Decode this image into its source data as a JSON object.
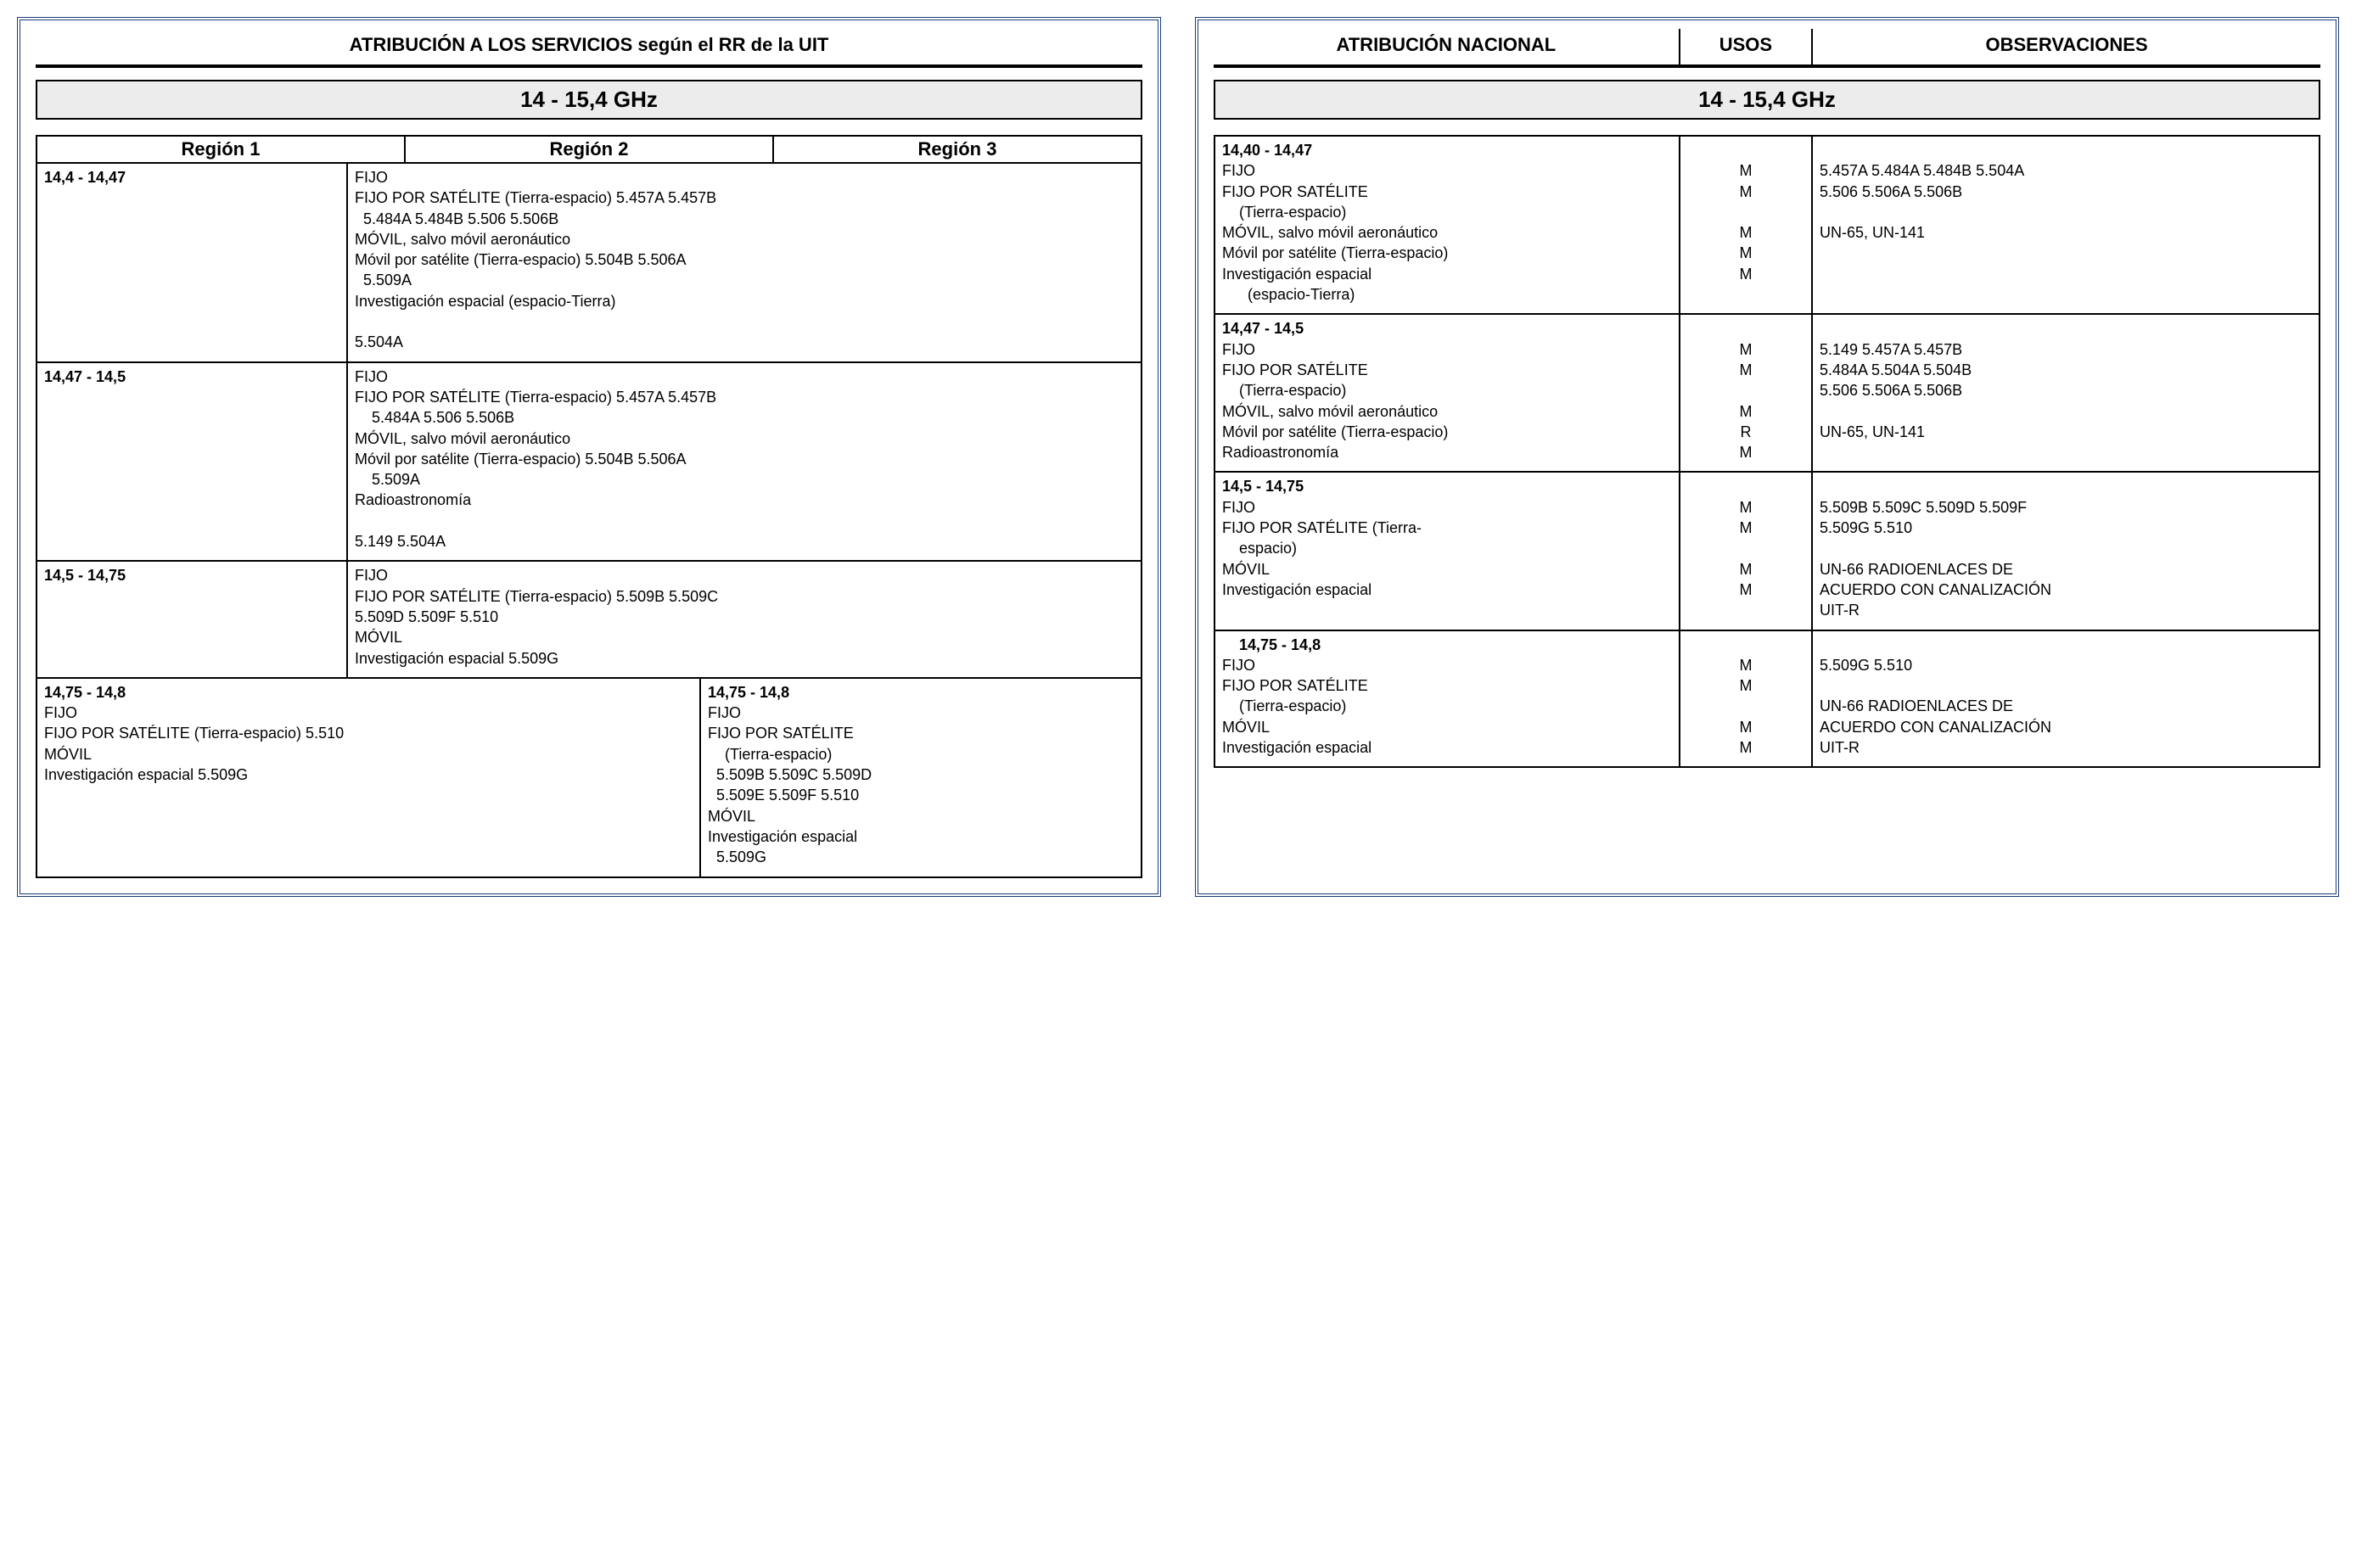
{
  "left": {
    "title": "ATRIBUCIÓN A LOS SERVICIOS según el RR de la UIT",
    "band": "14  - 15,4 GHz",
    "regions": [
      "Región 1",
      "Región 2",
      "Región 3"
    ],
    "rows": [
      {
        "range": "14,4 - 14,47",
        "lines": [
          "FIJO",
          "FIJO POR SATÉLITE (Tierra-espacio) 5.457A  5.457B",
          " 5.484A 5.484B 5.506 5.506B",
          "MÓVIL, salvo móvil aeronáutico",
          "Móvil por satélite (Tierra-espacio) 5.504B 5.506A",
          " 5.509A",
          "Investigación espacial (espacio-Tierra)",
          "",
          "5.504A"
        ]
      },
      {
        "range": "14,47 - 14,5",
        "lines": [
          "FIJO",
          "FIJO POR SATÉLITE (Tierra-espacio) 5.457A 5.457B",
          "  5.484A 5.506  5.506B",
          "MÓVIL, salvo móvil aeronáutico",
          "Móvil por satélite (Tierra-espacio) 5.504B 5.506A",
          "  5.509A",
          "Radioastronomía",
          "",
          "5.149  5.504A"
        ]
      },
      {
        "range": "14,5 - 14,75",
        "lines": [
          "FIJO",
          "FIJO POR SATÉLITE (Tierra-espacio) 5.509B 5.509C",
          "5.509D 5.509F 5.510",
          "MÓVIL",
          "Investigación espacial 5.509G"
        ]
      }
    ],
    "split": {
      "left": [
        "14,75 - 14,8",
        "FIJO",
        "FIJO POR SATÉLITE (Tierra-espacio) 5.510",
        "MÓVIL",
        "Investigación espacial 5.509G"
      ],
      "right": [
        "14,75 - 14,8",
        "FIJO",
        "FIJO POR SATÉLITE",
        "  (Tierra-espacio)",
        " 5.509B 5.509C 5.509D",
        " 5.509E 5.509F 5.510",
        "MÓVIL",
        "Investigación espacial",
        " 5.509G"
      ]
    }
  },
  "right": {
    "headers": [
      "ATRIBUCIÓN NACIONAL",
      "USOS",
      "OBSERVACIONES"
    ],
    "band": "14  - 15,4 GHz",
    "rows": [
      {
        "range": "14,40 - 14,47",
        "atrib": [
          "FIJO",
          "FIJO POR SATÉLITE",
          "  (Tierra-espacio)",
          "MÓVIL, salvo móvil aeronáutico",
          "Móvil por satélite (Tierra-espacio)",
          "Investigación espacial",
          "   (espacio-Tierra)"
        ],
        "usos": [
          "",
          "M",
          "M",
          "",
          "M",
          "M",
          "M",
          ""
        ],
        "obs": [
          "5.457A 5.484A 5.484B 5.504A",
          "5.506 5.506A  5.506B",
          "",
          "UN-65,  UN-141"
        ]
      },
      {
        "range": "14,47 - 14,5",
        "atrib": [
          "FIJO",
          "FIJO POR SATÉLITE",
          "  (Tierra-espacio)",
          "MÓVIL, salvo móvil aeronáutico",
          "Móvil por satélite (Tierra-espacio)",
          "Radioastronomía"
        ],
        "usos": [
          "",
          "M",
          "M",
          "",
          "M",
          "R",
          "M"
        ],
        "obs": [
          "5.149  5.457A  5.457B",
          "5.484A  5.504A  5.504B",
          "5.506  5.506A 5.506B",
          "",
          "UN-65,  UN-141"
        ]
      },
      {
        "range": "14,5 - 14,75",
        "atrib": [
          "FIJO",
          "FIJO POR SATÉLITE (Tierra-",
          "  espacio)",
          "MÓVIL",
          "Investigación espacial"
        ],
        "usos": [
          "",
          "M",
          "M",
          "",
          "M",
          "M"
        ],
        "obs": [
          "5.509B 5.509C 5.509D 5.509F",
          "5.509G 5.510",
          "",
          "UN-66 RADIOENLACES DE",
          "ACUERDO CON CANALIZACIÓN",
          "UIT-R"
        ]
      },
      {
        "range": "  14,75 - 14,8",
        "atrib": [
          "FIJO",
          "FIJO POR SATÉLITE",
          "  (Tierra-espacio)",
          "MÓVIL",
          "Investigación espacial"
        ],
        "usos": [
          "",
          "M",
          "M",
          "",
          "M",
          "M"
        ],
        "obs": [
          "5.509G 5.510",
          "",
          "UN-66 RADIOENLACES DE",
          "ACUERDO CON CANALIZACIÓN",
          "UIT-R"
        ]
      }
    ]
  }
}
